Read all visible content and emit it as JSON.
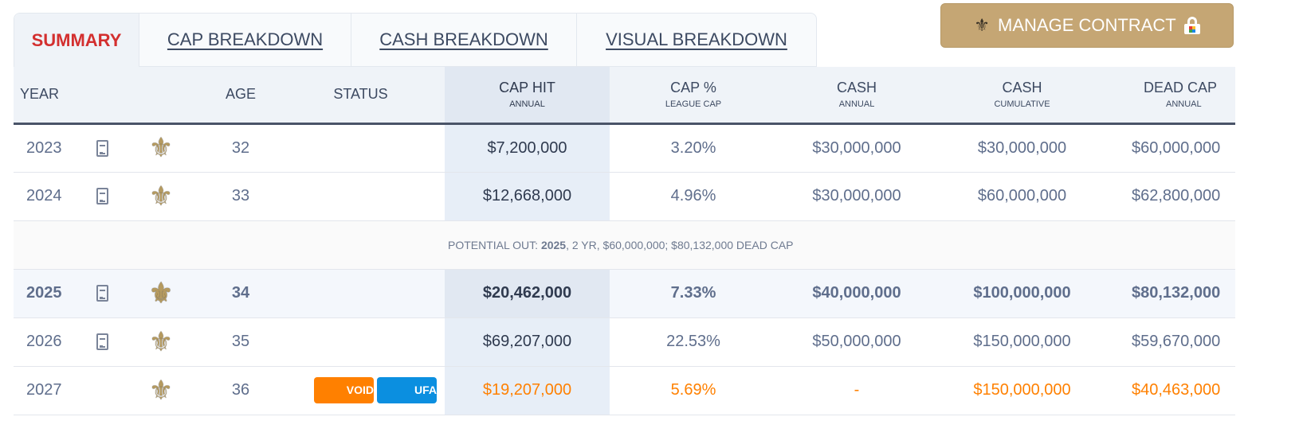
{
  "tabs": [
    "SUMMARY",
    "CAP BREAKDOWN",
    "CASH BREAKDOWN",
    "VISUAL BREAKDOWN"
  ],
  "manage_label": "MANAGE CONTRACT",
  "headers": {
    "year": "YEAR",
    "age": "AGE",
    "status": "STATUS",
    "cap_hit": "CAP HIT",
    "cap_hit_sub": "ANNUAL",
    "cap_pct": "CAP %",
    "cap_pct_sub": "LEAGUE CAP",
    "cash": "CASH",
    "cash_sub": "ANNUAL",
    "cash_cum": "CASH",
    "cash_cum_sub": "CUMULATIVE",
    "dead": "DEAD CAP",
    "dead_sub": "ANNUAL"
  },
  "rows": [
    {
      "year": "2023",
      "age": "32",
      "cap_hit": "$7,200,000",
      "cap_pct": "3.20%",
      "cash": "$30,000,000",
      "cash_cum": "$30,000,000",
      "dead": "$60,000,000"
    },
    {
      "year": "2024",
      "age": "33",
      "cap_hit": "$12,668,000",
      "cap_pct": "4.96%",
      "cash": "$30,000,000",
      "cash_cum": "$60,000,000",
      "dead": "$62,800,000"
    },
    {
      "year": "2025",
      "age": "34",
      "cap_hit": "$20,462,000",
      "cap_pct": "7.33%",
      "cash": "$40,000,000",
      "cash_cum": "$100,000,000",
      "dead": "$80,132,000"
    },
    {
      "year": "2026",
      "age": "35",
      "cap_hit": "$69,207,000",
      "cap_pct": "22.53%",
      "cash": "$50,000,000",
      "cash_cum": "$150,000,000",
      "dead": "$59,670,000"
    },
    {
      "year": "2027",
      "age": "36",
      "status": [
        "VOID",
        "UFA"
      ],
      "cap_hit": "$19,207,000",
      "cap_pct": "5.69%",
      "cash": "-",
      "cash_cum": "$150,000,000",
      "dead": "$40,463,000"
    }
  ],
  "potential": {
    "prefix": "POTENTIAL OUT: ",
    "year": "2025",
    "rest": ", 2 YR, $60,000,000; $80,132,000 DEAD CAP"
  },
  "colors": {
    "accent": "#c5a674",
    "summary": "#d32f2f",
    "void": "#ff8000",
    "ufa": "#0b8fe0"
  }
}
